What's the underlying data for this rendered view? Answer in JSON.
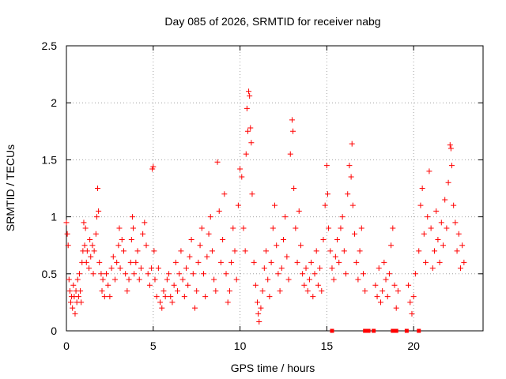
{
  "chart_data": {
    "type": "scatter",
    "title": "Day 085 of 2026, SRMTID for receiver nabg",
    "xlabel": "GPS time / hours",
    "ylabel": "SRMTID / TECUs",
    "xlim": [
      0,
      24
    ],
    "ylim": [
      0,
      2.5
    ],
    "xticks": [
      0,
      5,
      10,
      15,
      20
    ],
    "yticks": [
      0,
      0.5,
      1,
      1.5,
      2,
      2.5
    ],
    "ytick_labels": [
      "0",
      "0.5",
      "1",
      "1.5",
      "2",
      "2.5"
    ],
    "xtick_labels": [
      "0",
      "5",
      "10",
      "15",
      "20"
    ],
    "grid": true,
    "marker": "plus",
    "series": [
      {
        "name": "SRMTID",
        "color": "#ff0000",
        "points": [
          [
            0.0,
            0.95
          ],
          [
            0.05,
            0.85
          ],
          [
            0.1,
            0.75
          ],
          [
            0.15,
            0.45
          ],
          [
            0.2,
            0.35
          ],
          [
            0.25,
            0.25
          ],
          [
            0.3,
            0.3
          ],
          [
            0.35,
            0.2
          ],
          [
            0.4,
            0.4
          ],
          [
            0.45,
            0.3
          ],
          [
            0.5,
            0.15
          ],
          [
            0.55,
            0.35
          ],
          [
            0.6,
            0.25
          ],
          [
            0.65,
            0.45
          ],
          [
            0.7,
            0.3
          ],
          [
            0.75,
            0.5
          ],
          [
            0.8,
            0.35
          ],
          [
            0.85,
            0.25
          ],
          [
            0.9,
            0.6
          ],
          [
            0.95,
            0.7
          ],
          [
            1.0,
            0.95
          ],
          [
            1.05,
            0.75
          ],
          [
            1.1,
            0.9
          ],
          [
            1.15,
            0.6
          ],
          [
            1.2,
            0.7
          ],
          [
            1.3,
            0.55
          ],
          [
            1.35,
            0.8
          ],
          [
            1.4,
            0.65
          ],
          [
            1.5,
            0.75
          ],
          [
            1.55,
            0.5
          ],
          [
            1.6,
            0.7
          ],
          [
            1.7,
            0.85
          ],
          [
            1.75,
            1.0
          ],
          [
            1.8,
            1.25
          ],
          [
            1.85,
            1.05
          ],
          [
            1.9,
            0.6
          ],
          [
            2.0,
            0.5
          ],
          [
            2.05,
            0.35
          ],
          [
            2.1,
            0.45
          ],
          [
            2.2,
            0.3
          ],
          [
            2.3,
            0.5
          ],
          [
            2.4,
            0.4
          ],
          [
            2.5,
            0.3
          ],
          [
            2.6,
            0.55
          ],
          [
            2.7,
            0.65
          ],
          [
            2.8,
            0.45
          ],
          [
            2.9,
            0.6
          ],
          [
            3.0,
            0.75
          ],
          [
            3.05,
            0.9
          ],
          [
            3.1,
            0.55
          ],
          [
            3.2,
            0.8
          ],
          [
            3.3,
            0.7
          ],
          [
            3.4,
            0.5
          ],
          [
            3.5,
            0.35
          ],
          [
            3.6,
            0.45
          ],
          [
            3.7,
            0.6
          ],
          [
            3.75,
            0.8
          ],
          [
            3.8,
            1.0
          ],
          [
            3.85,
            0.9
          ],
          [
            3.9,
            0.5
          ],
          [
            4.0,
            0.6
          ],
          [
            4.1,
            0.7
          ],
          [
            4.2,
            0.45
          ],
          [
            4.3,
            0.55
          ],
          [
            4.4,
            0.85
          ],
          [
            4.5,
            0.95
          ],
          [
            4.6,
            0.75
          ],
          [
            4.7,
            0.5
          ],
          [
            4.8,
            0.4
          ],
          [
            4.9,
            0.55
          ],
          [
            4.95,
            1.42
          ],
          [
            5.0,
            1.44
          ],
          [
            5.05,
            0.7
          ],
          [
            5.1,
            0.45
          ],
          [
            5.2,
            0.3
          ],
          [
            5.3,
            0.55
          ],
          [
            5.4,
            0.25
          ],
          [
            5.5,
            0.2
          ],
          [
            5.6,
            0.35
          ],
          [
            5.7,
            0.3
          ],
          [
            5.8,
            0.45
          ],
          [
            5.9,
            0.5
          ],
          [
            6.0,
            0.3
          ],
          [
            6.1,
            0.25
          ],
          [
            6.2,
            0.4
          ],
          [
            6.3,
            0.6
          ],
          [
            6.4,
            0.35
          ],
          [
            6.5,
            0.5
          ],
          [
            6.6,
            0.7
          ],
          [
            6.7,
            0.45
          ],
          [
            6.8,
            0.3
          ],
          [
            6.9,
            0.55
          ],
          [
            7.0,
            0.4
          ],
          [
            7.1,
            0.65
          ],
          [
            7.2,
            0.8
          ],
          [
            7.3,
            0.5
          ],
          [
            7.4,
            0.2
          ],
          [
            7.5,
            0.35
          ],
          [
            7.6,
            0.6
          ],
          [
            7.7,
            0.75
          ],
          [
            7.8,
            0.9
          ],
          [
            7.9,
            0.5
          ],
          [
            8.0,
            0.3
          ],
          [
            8.1,
            0.65
          ],
          [
            8.2,
            0.85
          ],
          [
            8.3,
            1.0
          ],
          [
            8.4,
            0.7
          ],
          [
            8.5,
            0.45
          ],
          [
            8.6,
            0.35
          ],
          [
            8.7,
            1.48
          ],
          [
            8.8,
            1.05
          ],
          [
            8.9,
            0.6
          ],
          [
            9.0,
            0.8
          ],
          [
            9.1,
            1.2
          ],
          [
            9.2,
            0.5
          ],
          [
            9.3,
            0.25
          ],
          [
            9.4,
            0.35
          ],
          [
            9.5,
            0.6
          ],
          [
            9.6,
            0.9
          ],
          [
            9.7,
            0.7
          ],
          [
            9.8,
            0.45
          ],
          [
            9.9,
            1.1
          ],
          [
            10.0,
            1.42
          ],
          [
            10.1,
            1.35
          ],
          [
            10.2,
            0.9
          ],
          [
            10.3,
            0.7
          ],
          [
            10.35,
            1.55
          ],
          [
            10.4,
            1.95
          ],
          [
            10.45,
            1.75
          ],
          [
            10.5,
            2.1
          ],
          [
            10.55,
            2.06
          ],
          [
            10.6,
            1.78
          ],
          [
            10.65,
            1.65
          ],
          [
            10.7,
            1.2
          ],
          [
            10.8,
            0.6
          ],
          [
            10.9,
            0.4
          ],
          [
            11.0,
            0.25
          ],
          [
            11.05,
            0.15
          ],
          [
            11.1,
            0.08
          ],
          [
            11.2,
            0.2
          ],
          [
            11.3,
            0.35
          ],
          [
            11.4,
            0.55
          ],
          [
            11.5,
            0.7
          ],
          [
            11.6,
            0.45
          ],
          [
            11.7,
            0.3
          ],
          [
            11.8,
            0.6
          ],
          [
            11.9,
            0.9
          ],
          [
            12.0,
            1.1
          ],
          [
            12.1,
            0.75
          ],
          [
            12.2,
            0.5
          ],
          [
            12.3,
            0.35
          ],
          [
            12.4,
            0.55
          ],
          [
            12.5,
            0.8
          ],
          [
            12.6,
            1.0
          ],
          [
            12.7,
            0.65
          ],
          [
            12.8,
            0.45
          ],
          [
            12.9,
            1.55
          ],
          [
            13.0,
            1.85
          ],
          [
            13.05,
            1.75
          ],
          [
            13.1,
            1.25
          ],
          [
            13.2,
            0.9
          ],
          [
            13.3,
            0.6
          ],
          [
            13.4,
            1.05
          ],
          [
            13.5,
            0.75
          ],
          [
            13.6,
            0.5
          ],
          [
            13.7,
            0.4
          ],
          [
            13.8,
            0.55
          ],
          [
            13.9,
            0.35
          ],
          [
            14.0,
            0.45
          ],
          [
            14.1,
            0.6
          ],
          [
            14.2,
            0.3
          ],
          [
            14.3,
            0.5
          ],
          [
            14.4,
            0.7
          ],
          [
            14.5,
            0.4
          ],
          [
            14.6,
            0.55
          ],
          [
            14.7,
            0.35
          ],
          [
            14.8,
            0.8
          ],
          [
            14.9,
            1.1
          ],
          [
            15.0,
            1.45
          ],
          [
            15.05,
            1.2
          ],
          [
            15.1,
            0.9
          ],
          [
            15.2,
            0.7
          ],
          [
            15.3,
            0.55
          ],
          [
            15.4,
            0.45
          ],
          [
            15.5,
            0.65
          ],
          [
            15.6,
            0.8
          ],
          [
            15.7,
            0.6
          ],
          [
            15.8,
            0.9
          ],
          [
            15.9,
            1.0
          ],
          [
            16.0,
            0.7
          ],
          [
            16.1,
            0.5
          ],
          [
            16.2,
            1.2
          ],
          [
            16.3,
            1.45
          ],
          [
            16.4,
            1.35
          ],
          [
            16.45,
            1.64
          ],
          [
            16.5,
            1.1
          ],
          [
            16.6,
            0.85
          ],
          [
            16.7,
            0.6
          ],
          [
            16.8,
            0.45
          ],
          [
            16.9,
            0.7
          ],
          [
            17.0,
            0.9
          ],
          [
            17.1,
            0.5
          ],
          [
            17.2,
            0.35
          ],
          [
            17.8,
            0.4
          ],
          [
            17.9,
            0.3
          ],
          [
            18.0,
            0.55
          ],
          [
            18.1,
            0.25
          ],
          [
            18.2,
            0.35
          ],
          [
            18.3,
            0.6
          ],
          [
            18.4,
            0.45
          ],
          [
            18.5,
            0.3
          ],
          [
            18.6,
            0.5
          ],
          [
            18.7,
            0.75
          ],
          [
            18.8,
            0.9
          ],
          [
            18.9,
            0.4
          ],
          [
            19.0,
            0.2
          ],
          [
            19.1,
            0.35
          ],
          [
            19.7,
            0.4
          ],
          [
            19.8,
            0.25
          ],
          [
            19.9,
            0.15
          ],
          [
            20.0,
            0.3
          ],
          [
            20.1,
            0.5
          ],
          [
            20.3,
            0.7
          ],
          [
            20.4,
            1.1
          ],
          [
            20.5,
            1.25
          ],
          [
            20.6,
            0.85
          ],
          [
            20.7,
            0.6
          ],
          [
            20.8,
            1.0
          ],
          [
            20.9,
            1.4
          ],
          [
            21.0,
            0.9
          ],
          [
            21.1,
            0.55
          ],
          [
            21.2,
            0.7
          ],
          [
            21.3,
            1.05
          ],
          [
            21.4,
            0.8
          ],
          [
            21.5,
            0.6
          ],
          [
            21.6,
            0.95
          ],
          [
            21.7,
            0.75
          ],
          [
            21.8,
            1.15
          ],
          [
            21.9,
            0.9
          ],
          [
            22.0,
            1.3
          ],
          [
            22.1,
            1.63
          ],
          [
            22.15,
            1.6
          ],
          [
            22.2,
            1.45
          ],
          [
            22.3,
            1.1
          ],
          [
            22.4,
            0.95
          ],
          [
            22.5,
            0.7
          ],
          [
            22.6,
            0.85
          ],
          [
            22.7,
            0.55
          ],
          [
            22.8,
            0.75
          ],
          [
            22.9,
            0.6
          ]
        ],
        "zero_marks_x": [
          15.3,
          17.2,
          17.4,
          17.7,
          18.8,
          19.0,
          19.6,
          20.3
        ]
      }
    ]
  }
}
